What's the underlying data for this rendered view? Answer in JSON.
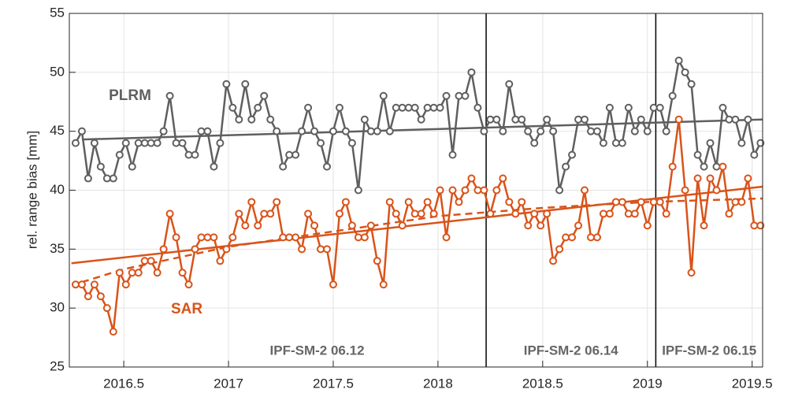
{
  "chart_data": {
    "type": "line",
    "ylabel": "rel. range bias [mm]",
    "xlim": [
      2016.24,
      2019.55
    ],
    "ylim": [
      25,
      55
    ],
    "xticks": [
      2016.5,
      2017,
      2017.5,
      2018,
      2018.5,
      2019,
      2019.5
    ],
    "yticks": [
      25,
      30,
      35,
      40,
      45,
      50,
      55
    ],
    "grid": true,
    "x": [
      2016.27,
      2016.3,
      2016.33,
      2016.36,
      2016.39,
      2016.42,
      2016.45,
      2016.48,
      2016.51,
      2016.54,
      2016.57,
      2016.6,
      2016.63,
      2016.66,
      2016.69,
      2016.72,
      2016.75,
      2016.78,
      2016.81,
      2016.84,
      2016.87,
      2016.9,
      2016.93,
      2016.96,
      2016.99,
      2017.02,
      2017.05,
      2017.08,
      2017.11,
      2017.14,
      2017.17,
      2017.2,
      2017.23,
      2017.26,
      2017.29,
      2017.32,
      2017.35,
      2017.38,
      2017.41,
      2017.44,
      2017.47,
      2017.5,
      2017.53,
      2017.56,
      2017.59,
      2017.62,
      2017.65,
      2017.68,
      2017.71,
      2017.74,
      2017.77,
      2017.8,
      2017.83,
      2017.86,
      2017.89,
      2017.92,
      2017.95,
      2017.98,
      2018.01,
      2018.04,
      2018.07,
      2018.1,
      2018.13,
      2018.16,
      2018.19,
      2018.22,
      2018.25,
      2018.28,
      2018.31,
      2018.34,
      2018.37,
      2018.4,
      2018.43,
      2018.46,
      2018.49,
      2018.52,
      2018.55,
      2018.58,
      2018.61,
      2018.64,
      2018.67,
      2018.7,
      2018.73,
      2018.76,
      2018.79,
      2018.82,
      2018.85,
      2018.88,
      2018.91,
      2018.94,
      2018.97,
      2019.0,
      2019.03,
      2019.06,
      2019.09,
      2019.12,
      2019.15,
      2019.18,
      2019.21,
      2019.24,
      2019.27,
      2019.3,
      2019.33,
      2019.36,
      2019.39,
      2019.42,
      2019.45,
      2019.48,
      2019.51,
      2019.54
    ],
    "series": [
      {
        "name": "PLRM",
        "color": "#5f5f5f",
        "values": [
          44,
          45,
          41,
          44,
          42,
          41,
          41,
          43,
          44,
          42,
          44,
          44,
          44,
          44,
          45,
          48,
          44,
          44,
          43,
          43,
          45,
          45,
          42,
          44,
          49,
          47,
          46,
          49,
          46,
          47,
          48,
          46,
          45,
          42,
          43,
          43,
          45,
          47,
          45,
          44,
          42,
          45,
          47,
          45,
          44,
          40,
          46,
          45,
          45,
          48,
          45,
          47,
          47,
          47,
          47,
          46,
          47,
          47,
          47,
          48,
          43,
          48,
          48,
          50,
          47,
          45,
          46,
          46,
          45,
          49,
          46,
          46,
          45,
          44,
          45,
          46,
          45,
          40,
          42,
          43,
          46,
          46,
          45,
          45,
          44,
          47,
          44,
          44,
          47,
          45,
          46,
          45,
          47,
          47,
          45,
          48,
          51,
          50,
          49,
          43,
          42,
          44,
          42,
          47,
          46,
          46,
          44,
          46,
          43,
          44
        ]
      },
      {
        "name": "SAR",
        "color": "#d95319",
        "values": [
          32,
          32,
          31,
          32,
          31,
          30,
          28,
          33,
          32,
          33,
          33,
          34,
          34,
          33,
          35,
          38,
          36,
          33,
          32,
          35,
          36,
          36,
          36,
          34,
          35,
          36,
          38,
          37,
          39,
          37,
          38,
          38,
          39,
          36,
          36,
          36,
          35,
          38,
          37,
          35,
          35,
          32,
          38,
          39,
          37,
          36,
          36,
          37,
          34,
          32,
          39,
          38,
          37,
          39,
          38,
          38,
          39,
          38,
          40,
          36,
          40,
          39,
          40,
          41,
          40,
          40,
          38,
          40,
          41,
          39,
          38,
          39,
          37,
          38,
          37,
          38,
          34,
          35,
          36,
          36,
          37,
          40,
          36,
          36,
          38,
          38,
          39,
          39,
          38,
          38,
          39,
          37,
          39,
          39,
          38,
          42,
          46,
          40,
          33,
          41,
          37,
          41,
          40,
          42,
          38,
          39,
          39,
          41,
          37,
          37
        ]
      }
    ],
    "trend_lines": [
      {
        "color": "#5f5f5f",
        "dashed": false,
        "x": [
          2016.3,
          2019.55
        ],
        "values": [
          44.3,
          46
        ]
      },
      {
        "color": "#d95319",
        "dashed": false,
        "x": [
          2016.25,
          2019.55
        ],
        "values": [
          33.8,
          40.3
        ]
      },
      {
        "color": "#d95319",
        "dashed": true,
        "x": [
          2016.3,
          2016.5,
          2017,
          2017.5,
          2018,
          2018.5,
          2019,
          2019.55
        ],
        "values": [
          32.2,
          33.3,
          35.2,
          36.5,
          37.8,
          38.5,
          39,
          39.3
        ]
      }
    ],
    "versions": [
      {
        "label": "IPF-SM-2 06.12"
      },
      {
        "label": "IPF-SM-2 06.14",
        "start": 2018.23
      },
      {
        "label": "IPF-SM-2 06.15",
        "start": 2019.04
      }
    ]
  }
}
